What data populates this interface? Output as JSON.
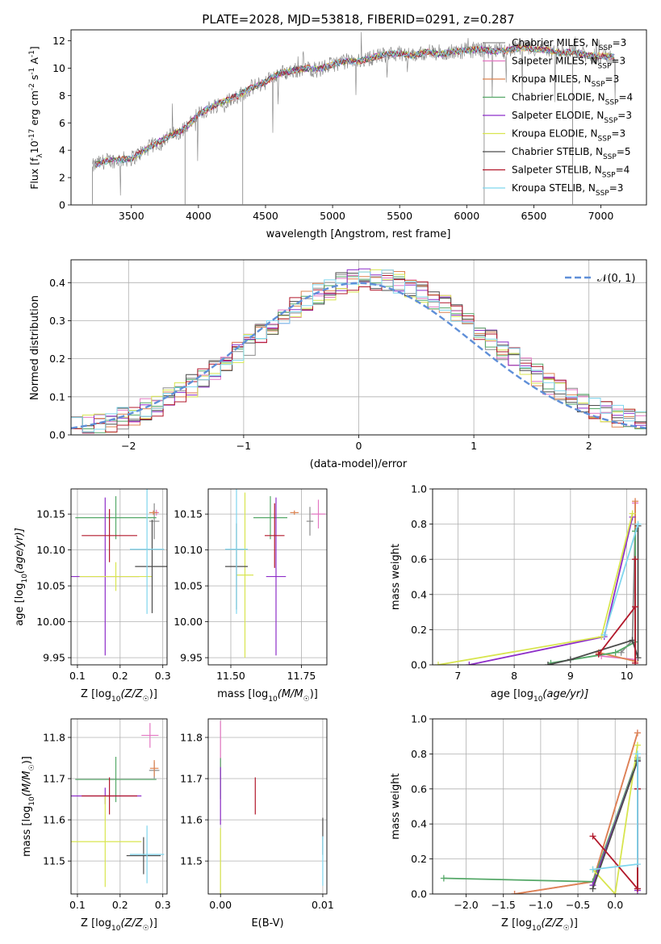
{
  "figure": {
    "title": "PLATE=2028, MJD=53818, FIBERID=0291, z=0.287"
  },
  "models": [
    {
      "label": "Chabrier MILES, N",
      "nssp": "=3",
      "color": "#8c8c8c"
    },
    {
      "label": "Salpeter MILES, N",
      "nssp": "=3",
      "color": "#e377c2"
    },
    {
      "label": "Kroupa MILES, N",
      "nssp": "=3",
      "color": "#dd8452"
    },
    {
      "label": "Chabrier ELODIE, N",
      "nssp": "=4",
      "color": "#55a868"
    },
    {
      "label": "Salpeter ELODIE, N",
      "nssp": "=3",
      "color": "#8e2ec9"
    },
    {
      "label": "Kroupa ELODIE, N",
      "nssp": "=3",
      "color": "#d8e54f"
    },
    {
      "label": "Chabrier STELIB, N",
      "nssp": "=5",
      "color": "#4c4c4c"
    },
    {
      "label": "Salpeter STELIB, N",
      "nssp": "=4",
      "color": "#b2182b"
    },
    {
      "label": "Kroupa STELIB, N",
      "nssp": "=3",
      "color": "#7fd6ee"
    }
  ],
  "chart_data": [
    {
      "id": "spectrum",
      "type": "line",
      "xlabel": "wavelength [Angstrom, rest frame]",
      "ylabel": "Flux [f",
      "ylabel_rest": "10",
      "ylabel_exp": "-17",
      "ylabel_tail": " erg cm",
      "ylabel_exp2": "-2",
      "ylabel_tail2": " s",
      "ylabel_exp3": "-1",
      "ylabel_tail3": " A",
      "ylabel_exp4": "-1",
      "ylabel_end": "]",
      "xlim": [
        3050,
        7340
      ],
      "ylim": [
        0,
        12.8
      ],
      "xticks": [
        3500,
        4000,
        4500,
        5000,
        5500,
        6000,
        6500,
        7000
      ],
      "yticks": [
        0,
        2,
        4,
        6,
        8,
        10,
        12
      ],
      "continuum": {
        "x": [
          3210,
          3250,
          3300,
          3400,
          3500,
          3600,
          3700,
          3800,
          3900,
          4000,
          4100,
          4200,
          4300,
          4400,
          4500,
          4600,
          4700,
          4800,
          4900,
          5000,
          5100,
          5200,
          5300,
          5400,
          5500,
          5600,
          5700,
          5800,
          5900,
          6000,
          6100,
          6200,
          6300,
          6400,
          6500,
          6600,
          6700,
          6800,
          6900,
          7000,
          7100
        ],
        "y": [
          2.8,
          3.0,
          3.2,
          3.3,
          3.4,
          4.0,
          4.6,
          5.1,
          5.6,
          6.6,
          7.2,
          7.6,
          8.0,
          8.6,
          9.0,
          9.6,
          9.8,
          10.0,
          9.9,
          10.3,
          10.5,
          10.5,
          10.8,
          11.0,
          11.1,
          10.9,
          11.2,
          11.0,
          11.2,
          11.3,
          11.4,
          11.2,
          11.3,
          11.5,
          11.4,
          11.3,
          11.1,
          11.2,
          10.9,
          10.9,
          10.8
        ]
      }
    },
    {
      "id": "residuals",
      "type": "histogram",
      "xlabel": "(data-model)/error",
      "ylabel": "Normed distribution",
      "legend": "N(0, 1)",
      "xlim": [
        -2.5,
        2.5
      ],
      "ylim": [
        0,
        0.46
      ],
      "xticks": [
        -2,
        -1,
        0,
        1,
        2
      ],
      "yticks": [
        0.0,
        0.1,
        0.2,
        0.3,
        0.4
      ],
      "bin_width": 0.1
    },
    {
      "id": "age-vs-Z",
      "type": "errorbar",
      "xlabel": "Z [log",
      "xlabel_sub": "10",
      "xlabel_rest": "(Z/Z",
      "xlabel_sun": "☉",
      "xlabel_end": ")]",
      "ylabel": "age  [log",
      "ylabel_sub": "10",
      "ylabel_rest": "(age/yr)]",
      "xlim": [
        0.085,
        0.31
      ],
      "ylim": [
        9.94,
        10.185
      ],
      "xticks": [
        "0.1",
        "0.2",
        "0.3"
      ],
      "yticks": [
        "9.95",
        "10.00",
        "10.05",
        "10.10",
        "10.15"
      ],
      "points": [
        {
          "model": 0,
          "x": 0.28,
          "xerr": 0.012,
          "y": 10.14,
          "yerr": 0.025
        },
        {
          "model": 1,
          "x": 0.285,
          "xerr": 0.006,
          "y": 10.152,
          "yerr": 0.004
        },
        {
          "model": 2,
          "x": 0.278,
          "xerr": 0.01,
          "y": 10.152,
          "yerr": 0.003
        },
        {
          "model": 3,
          "x": 0.19,
          "xerr": 0.095,
          "y": 10.145,
          "yerr": 0.03
        },
        {
          "model": 4,
          "x": 0.165,
          "xerr": 0.08,
          "y": 10.063,
          "yerr": 0.11
        },
        {
          "model": 5,
          "x": 0.19,
          "xerr": 0.085,
          "y": 10.063,
          "yerr": 0.02
        },
        {
          "model": 6,
          "x": 0.275,
          "xerr": 0.04,
          "y": 10.077,
          "yerr": 0.065
        },
        {
          "model": 7,
          "x": 0.175,
          "xerr": 0.065,
          "y": 10.12,
          "yerr": 0.037
        },
        {
          "model": 8,
          "x": 0.263,
          "xerr": 0.04,
          "y": 10.101,
          "yerr": 0.09
        }
      ]
    },
    {
      "id": "age-vs-mass",
      "type": "errorbar",
      "xlabel": "mass [log",
      "xlabel_sub": "10",
      "xlabel_rest": "(M/M",
      "xlabel_sun": "☉",
      "xlabel_end": ")]",
      "xlim": [
        11.42,
        11.84
      ],
      "ylim": [
        9.94,
        10.185
      ],
      "xticks": [
        "11.50",
        "11.75"
      ],
      "yticks": [
        "9.95",
        "10.00",
        "10.05",
        "10.10",
        "10.15"
      ],
      "points": [
        {
          "model": 0,
          "x": 11.78,
          "xerr": 0.012,
          "y": 10.14,
          "yerr": 0.02
        },
        {
          "model": 1,
          "x": 11.81,
          "xerr": 0.025,
          "y": 10.15,
          "yerr": 0.02
        },
        {
          "model": 2,
          "x": 11.725,
          "xerr": 0.015,
          "y": 10.152,
          "yerr": 0.003
        },
        {
          "model": 3,
          "x": 11.64,
          "xerr": 0.06,
          "y": 10.145,
          "yerr": 0.03
        },
        {
          "model": 4,
          "x": 11.66,
          "xerr": 0.035,
          "y": 10.063,
          "yerr": 0.11
        },
        {
          "model": 5,
          "x": 11.55,
          "xerr": 0.03,
          "y": 10.065,
          "yerr": 0.115
        },
        {
          "model": 6,
          "x": 11.52,
          "xerr": 0.04,
          "y": 10.077,
          "yerr": 0.06
        },
        {
          "model": 7,
          "x": 11.655,
          "xerr": 0.035,
          "y": 10.12,
          "yerr": 0.045
        },
        {
          "model": 8,
          "x": 11.52,
          "xerr": 0.04,
          "y": 10.101,
          "yerr": 0.09
        }
      ]
    },
    {
      "id": "mass-weight-vs-age",
      "type": "line",
      "xlabel": "age  [log",
      "xlabel_sub": "10",
      "xlabel_rest": "(age/yr)]",
      "ylabel": "mass weight",
      "xlim": [
        6.55,
        10.35
      ],
      "ylim": [
        0,
        1
      ],
      "xticks": [
        "7",
        "8",
        "9",
        "10"
      ],
      "yticks": [
        "0.0",
        "0.2",
        "0.4",
        "0.6",
        "0.8",
        "1.0"
      ],
      "series": [
        {
          "model": 0,
          "x": [
            9.9,
            10.1,
            10.15
          ],
          "y": [
            0.07,
            0.14,
            0.8
          ]
        },
        {
          "model": 1,
          "x": [
            9.55,
            10.15,
            10.15
          ],
          "y": [
            0.05,
            0.03,
            0.92
          ]
        },
        {
          "model": 2,
          "x": [
            9.5,
            10.15,
            10.15
          ],
          "y": [
            0.07,
            0.02,
            0.93
          ]
        },
        {
          "model": 3,
          "x": [
            8.65,
            9.8,
            10.15,
            10.15
          ],
          "y": [
            0.01,
            0.07,
            0.13,
            0.76
          ]
        },
        {
          "model": 4,
          "x": [
            7.2,
            9.6,
            10.1
          ],
          "y": [
            0.0,
            0.16,
            0.84
          ]
        },
        {
          "model": 5,
          "x": [
            6.65,
            9.55,
            10.1
          ],
          "y": [
            0.0,
            0.16,
            0.86
          ]
        },
        {
          "model": 6,
          "x": [
            8.6,
            9.0,
            10.1,
            10.2,
            10.2
          ],
          "y": [
            0.0,
            0.03,
            0.14,
            0.04,
            0.79
          ]
        },
        {
          "model": 7,
          "x": [
            9.5,
            10.15,
            10.15,
            10.15
          ],
          "y": [
            0.06,
            0.33,
            0.6,
            0.01
          ]
        },
        {
          "model": 8,
          "x": [
            9.6,
            10.2
          ],
          "y": [
            0.17,
            0.8
          ]
        }
      ]
    },
    {
      "id": "mass-vs-Z",
      "type": "errorbar",
      "xlabel": "Z [log",
      "xlabel_sub": "10",
      "xlabel_rest": "(Z/Z",
      "xlabel_sun": "☉",
      "xlabel_end": ")]",
      "ylabel": "mass [log",
      "ylabel_sub": "10",
      "ylabel_rest": "(M/M",
      "ylabel_sun": "☉",
      "ylabel_end": ")]",
      "xlim": [
        0.085,
        0.31
      ],
      "ylim": [
        11.42,
        11.845
      ],
      "xticks": [
        "0.1",
        "0.2",
        "0.3"
      ],
      "yticks": [
        "11.5",
        "11.6",
        "11.7",
        "11.8"
      ],
      "points": [
        {
          "model": 0,
          "x": 0.28,
          "xerr": 0.012,
          "y": 11.72,
          "yerr": 0.02
        },
        {
          "model": 1,
          "x": 0.27,
          "xerr": 0.02,
          "y": 11.805,
          "yerr": 0.03
        },
        {
          "model": 2,
          "x": 0.28,
          "xerr": 0.01,
          "y": 11.725,
          "yerr": 0.02
        },
        {
          "model": 3,
          "x": 0.19,
          "xerr": 0.095,
          "y": 11.698,
          "yerr": 0.055
        },
        {
          "model": 4,
          "x": 0.165,
          "xerr": 0.085,
          "y": 11.658,
          "yerr": 0.02
        },
        {
          "model": 5,
          "x": 0.165,
          "xerr": 0.085,
          "y": 11.547,
          "yerr": 0.11
        },
        {
          "model": 6,
          "x": 0.255,
          "xerr": 0.04,
          "y": 11.513,
          "yerr": 0.045
        },
        {
          "model": 7,
          "x": 0.175,
          "xerr": 0.065,
          "y": 11.658,
          "yerr": 0.045
        },
        {
          "model": 8,
          "x": 0.263,
          "xerr": 0.04,
          "y": 11.516,
          "yerr": 0.07
        }
      ]
    },
    {
      "id": "mass-vs-EBV",
      "type": "errorbar",
      "xlabel": "E(B-V)",
      "xlim": [
        -0.0012,
        0.0104
      ],
      "ylim": [
        11.42,
        11.845
      ],
      "xticks": [
        "0.00",
        "0.01"
      ],
      "yticks": [
        "11.5",
        "11.6",
        "11.7",
        "11.8"
      ],
      "points": [
        {
          "model": 1,
          "x": 0.0,
          "xerr": 0.0,
          "y": 11.77,
          "yerr": 0.07
        },
        {
          "model": 3,
          "x": 0.0,
          "xerr": 0.0,
          "y": 11.7,
          "yerr": 0.05
        },
        {
          "model": 4,
          "x": 0.0,
          "xerr": 0.0,
          "y": 11.658,
          "yerr": 0.07
        },
        {
          "model": 5,
          "x": 0.0,
          "xerr": 0.0,
          "y": 11.5,
          "yerr": 0.08
        },
        {
          "model": 6,
          "x": 0.01,
          "xerr": 0.0,
          "y": 11.56,
          "yerr": 0.045
        },
        {
          "model": 7,
          "x": 0.0034,
          "xerr": 0.0,
          "y": 11.658,
          "yerr": 0.045
        },
        {
          "model": 8,
          "x": 0.01,
          "xerr": 0.0,
          "y": 11.5,
          "yerr": 0.06
        }
      ]
    },
    {
      "id": "mass-weight-vs-Z",
      "type": "line",
      "xlabel": "Z [log",
      "xlabel_sub": "10",
      "xlabel_rest": "(Z/Z",
      "xlabel_sun": "☉",
      "xlabel_end": ")]",
      "ylabel": "mass weight",
      "xlim": [
        -2.45,
        0.42
      ],
      "ylim": [
        0,
        1
      ],
      "xticks": [
        "−2.0",
        "−1.5",
        "−1.0",
        "−0.5",
        "0.0"
      ],
      "yticks": [
        "0.0",
        "0.2",
        "0.4",
        "0.6",
        "0.8",
        "1.0"
      ],
      "series": [
        {
          "model": 0,
          "x": [
            -0.3,
            0.3,
            0.3
          ],
          "y": [
            0.05,
            0.78,
            0.03
          ]
        },
        {
          "model": 1,
          "x": [
            -1.35,
            -0.3,
            0.3
          ],
          "y": [
            0.0,
            0.07,
            0.92
          ]
        },
        {
          "model": 2,
          "x": [
            -1.35,
            -0.3,
            0.3
          ],
          "y": [
            0.0,
            0.07,
            0.92
          ]
        },
        {
          "model": 3,
          "x": [
            -2.3,
            -0.3,
            0.3
          ],
          "y": [
            0.09,
            0.07,
            0.77
          ]
        },
        {
          "model": 4,
          "x": [
            -0.3,
            0.3,
            0.3
          ],
          "y": [
            0.05,
            0.76,
            0.02
          ]
        },
        {
          "model": 5,
          "x": [
            -0.3,
            0.0,
            0.3
          ],
          "y": [
            0.14,
            0.0,
            0.85
          ]
        },
        {
          "model": 6,
          "x": [
            -0.3,
            0.3,
            0.3,
            0.3
          ],
          "y": [
            0.03,
            0.76,
            0.03,
            0.6
          ]
        },
        {
          "model": 7,
          "x": [
            -0.3,
            0.3,
            0.3
          ],
          "y": [
            0.33,
            0.03,
            0.6
          ]
        },
        {
          "model": 8,
          "x": [
            -0.3,
            0.3,
            0.3
          ],
          "y": [
            0.14,
            0.17,
            0.8
          ]
        }
      ]
    }
  ]
}
